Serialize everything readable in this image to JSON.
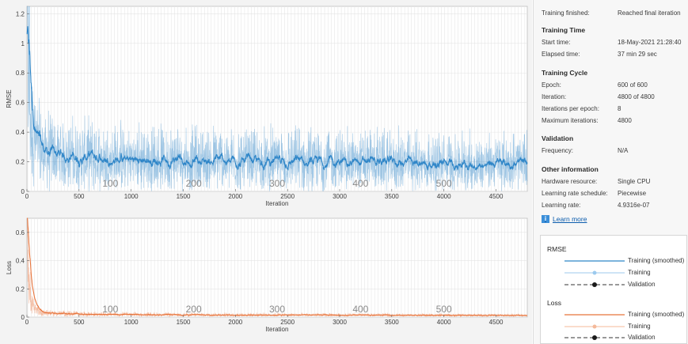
{
  "rmse_plot": {
    "ylabel": "RMSE",
    "xlabel": "Iteration",
    "yticks": [
      "0",
      "0.2",
      "0.4",
      "0.6",
      "0.8",
      "1",
      "1.2"
    ],
    "xticks": [
      "0",
      "500",
      "1000",
      "1500",
      "2000",
      "2500",
      "3000",
      "3500",
      "4000",
      "4500"
    ],
    "epoch_labels": [
      "100",
      "200",
      "300",
      "400",
      "500"
    ],
    "color": "#2f86c8"
  },
  "loss_plot": {
    "ylabel": "Loss",
    "xlabel": "Iteration",
    "yticks": [
      "0",
      "0.2",
      "0.4",
      "0.6"
    ],
    "xticks": [
      "0",
      "500",
      "1000",
      "1500",
      "2000",
      "2500",
      "3000",
      "3500",
      "4000",
      "4500"
    ],
    "epoch_labels": [
      "100",
      "200",
      "300",
      "400",
      "500"
    ],
    "color": "#e8743b"
  },
  "info": {
    "status_label": "Training finished:",
    "status_value": "Reached final iteration",
    "training_time_heading": "Training Time",
    "start_time_label": "Start time:",
    "start_time_value": "18-May-2021 21:28:40",
    "elapsed_label": "Elapsed time:",
    "elapsed_value": "37 min 29 sec",
    "training_cycle_heading": "Training Cycle",
    "epoch_label": "Epoch:",
    "epoch_value": "600 of 600",
    "iteration_label": "Iteration:",
    "iteration_value": "4800 of 4800",
    "ipe_label": "Iterations per epoch:",
    "ipe_value": "8",
    "max_iter_label": "Maximum iterations:",
    "max_iter_value": "4800",
    "validation_heading": "Validation",
    "frequency_label": "Frequency:",
    "frequency_value": "N/A",
    "other_heading": "Other information",
    "hw_label": "Hardware resource:",
    "hw_value": "Single CPU",
    "lrs_label": "Learning rate schedule:",
    "lrs_value": "Piecewise",
    "lr_label": "Learning rate:",
    "lr_value": "4.9316e-07",
    "learn_more": "Learn more",
    "learn_icon": "i"
  },
  "legend": {
    "rmse_title": "RMSE",
    "loss_title": "Loss",
    "smoothed": "Training (smoothed)",
    "training": "Training",
    "validation": "Validation"
  },
  "chart_data": [
    {
      "type": "line",
      "title": "",
      "xlabel": "Iteration",
      "ylabel": "RMSE",
      "xlim": [
        0,
        4800
      ],
      "ylim": [
        0,
        1.25
      ],
      "series": [
        {
          "name": "Training",
          "x": [
            1,
            20,
            40,
            80,
            150,
            300,
            600,
            1000,
            1500,
            2000,
            2500,
            3000,
            3500,
            4000,
            4500,
            4800
          ],
          "values": [
            1.2,
            0.55,
            0.35,
            0.25,
            0.2,
            0.18,
            0.17,
            0.16,
            0.16,
            0.15,
            0.15,
            0.15,
            0.15,
            0.14,
            0.14,
            0.14
          ]
        }
      ]
    },
    {
      "type": "line",
      "title": "",
      "xlabel": "Iteration",
      "ylabel": "Loss",
      "xlim": [
        0,
        4800
      ],
      "ylim": [
        0,
        0.7
      ],
      "series": [
        {
          "name": "Training",
          "x": [
            1,
            20,
            40,
            80,
            150,
            300,
            600,
            1000,
            1500,
            2000,
            2500,
            3000,
            3500,
            4000,
            4500,
            4800
          ],
          "values": [
            0.65,
            0.2,
            0.08,
            0.04,
            0.025,
            0.02,
            0.016,
            0.014,
            0.013,
            0.012,
            0.012,
            0.011,
            0.011,
            0.01,
            0.01,
            0.01
          ]
        }
      ]
    }
  ]
}
